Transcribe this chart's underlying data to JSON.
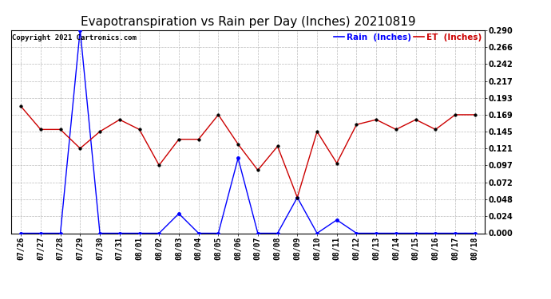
{
  "title": "Evapotranspiration vs Rain per Day (Inches) 20210819",
  "copyright_text": "Copyright 2021 Cartronics.com",
  "legend_rain": "Rain  (Inches)",
  "legend_et": "ET  (Inches)",
  "dates": [
    "07/26",
    "07/27",
    "07/28",
    "07/29",
    "07/30",
    "07/31",
    "08/01",
    "08/02",
    "08/03",
    "08/04",
    "08/05",
    "08/06",
    "08/07",
    "08/08",
    "08/09",
    "08/10",
    "08/11",
    "08/12",
    "08/13",
    "08/14",
    "08/15",
    "08/16",
    "08/17",
    "08/18"
  ],
  "rain": [
    0.0,
    0.0,
    0.0,
    0.29,
    0.0,
    0.0,
    0.0,
    0.0,
    0.028,
    0.0,
    0.0,
    0.107,
    0.0,
    0.0,
    0.051,
    0.0,
    0.019,
    0.0,
    0.0,
    0.0,
    0.0,
    0.0,
    0.0,
    0.0
  ],
  "et": [
    0.181,
    0.148,
    0.148,
    0.121,
    0.145,
    0.162,
    0.148,
    0.097,
    0.134,
    0.134,
    0.169,
    0.127,
    0.09,
    0.124,
    0.051,
    0.145,
    0.1,
    0.155,
    0.162,
    0.148,
    0.162,
    0.148,
    0.169,
    0.169
  ],
  "rain_color": "#0000ff",
  "et_color": "#cc0000",
  "ylim": [
    0.0,
    0.29
  ],
  "yticks": [
    0.0,
    0.024,
    0.048,
    0.072,
    0.097,
    0.121,
    0.145,
    0.169,
    0.193,
    0.217,
    0.242,
    0.266,
    0.29
  ],
  "grid_color": "#bbbbbb",
  "bg_color": "#ffffff",
  "title_fontsize": 11,
  "label_fontsize": 7.5,
  "tick_fontsize": 7,
  "copyright_fontsize": 6.5,
  "fig_width": 6.9,
  "fig_height": 3.75,
  "dpi": 100
}
